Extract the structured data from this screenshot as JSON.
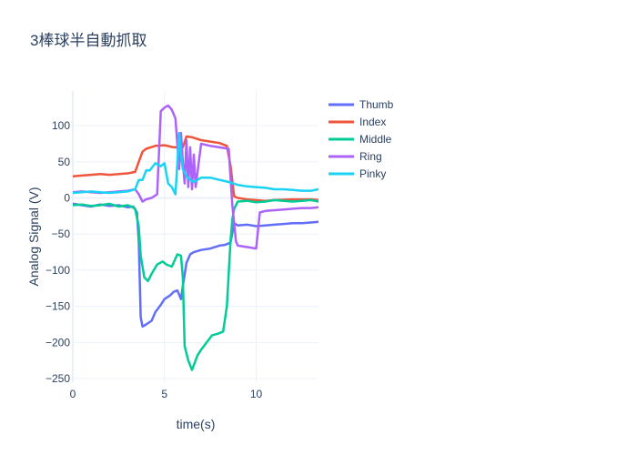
{
  "chart_data": {
    "type": "line",
    "title": "3棒球半自動抓取",
    "xlabel": "time(s)",
    "ylabel": "Analog Signal (V)",
    "xlim": [
      0,
      13.4
    ],
    "ylim": [
      -255,
      148
    ],
    "xticks": [
      0,
      5,
      10
    ],
    "yticks": [
      -250,
      -200,
      -150,
      -100,
      -50,
      0,
      50,
      100
    ],
    "ytick_labels": [
      "−250",
      "−200",
      "−150",
      "−100",
      "−50",
      "0",
      "50",
      "100"
    ],
    "grid": true,
    "legend_position": "right",
    "series": [
      {
        "name": "Thumb",
        "color": "#636efa",
        "x": [
          0,
          0.5,
          1,
          1.5,
          2,
          2.5,
          3,
          3.3,
          3.5,
          3.6,
          3.7,
          3.8,
          4,
          4.3,
          4.5,
          4.8,
          5,
          5.3,
          5.5,
          5.7,
          5.9,
          6,
          6.2,
          6.4,
          6.6,
          7,
          7.5,
          8,
          8.3,
          8.6,
          8.8,
          9,
          9.5,
          10,
          10.5,
          11,
          11.5,
          12,
          12.5,
          13,
          13.4
        ],
        "y": [
          -8,
          -10,
          -12,
          -9,
          -11,
          -10,
          -13,
          -12,
          -20,
          -60,
          -165,
          -178,
          -175,
          -170,
          -158,
          -148,
          -140,
          -135,
          -130,
          -128,
          -140,
          -122,
          -90,
          -78,
          -75,
          -72,
          -70,
          -66,
          -65,
          -62,
          -35,
          -38,
          -37,
          -39,
          -38,
          -37,
          -36,
          -35,
          -35,
          -34,
          -33
        ]
      },
      {
        "name": "Index",
        "color": "#ef553b",
        "x": [
          0,
          0.5,
          1,
          1.5,
          2,
          2.5,
          3,
          3.4,
          3.6,
          3.8,
          4,
          4.5,
          5,
          5.5,
          6,
          6.2,
          6.5,
          7,
          7.5,
          8,
          8.4,
          8.6,
          8.8,
          9,
          9.5,
          10,
          10.5,
          11,
          12,
          13,
          13.4
        ],
        "y": [
          30,
          31,
          32,
          33,
          32,
          33,
          34,
          36,
          50,
          64,
          68,
          72,
          73,
          70,
          70,
          85,
          84,
          80,
          78,
          76,
          72,
          45,
          2,
          0,
          -2,
          -3,
          -4,
          -3,
          -2,
          -2,
          -3
        ]
      },
      {
        "name": "Middle",
        "color": "#00cc96",
        "x": [
          0,
          0.5,
          1,
          1.5,
          2,
          2.5,
          3,
          3.2,
          3.4,
          3.6,
          3.7,
          3.9,
          4.1,
          4.3,
          4.6,
          4.9,
          5.1,
          5.4,
          5.7,
          5.9,
          6,
          6.1,
          6.3,
          6.5,
          6.8,
          7,
          7.3,
          7.6,
          7.9,
          8.2,
          8.4,
          8.6,
          8.7,
          8.8,
          9,
          9.5,
          10,
          10.5,
          11,
          11.5,
          12,
          12.5,
          13,
          13.4
        ],
        "y": [
          -10,
          -9,
          -11,
          -10,
          -8,
          -12,
          -10,
          -12,
          -15,
          -40,
          -80,
          -110,
          -115,
          -105,
          -92,
          -88,
          -92,
          -95,
          -78,
          -80,
          -110,
          -205,
          -225,
          -238,
          -218,
          -210,
          -200,
          -190,
          -188,
          -185,
          -150,
          -60,
          -30,
          -15,
          -5,
          -4,
          -6,
          -5,
          -3,
          -4,
          -5,
          -4,
          -3,
          -5
        ]
      },
      {
        "name": "Ring",
        "color": "#ab63fa",
        "x": [
          0,
          0.5,
          1,
          1.5,
          2,
          2.5,
          3,
          3.4,
          3.6,
          3.8,
          4,
          4.3,
          4.6,
          4.8,
          5,
          5.2,
          5.4,
          5.6,
          5.8,
          5.9,
          6,
          6.1,
          6.2,
          6.3,
          6.4,
          6.5,
          6.6,
          6.7,
          7,
          7.5,
          8,
          8.5,
          8.7,
          8.9,
          9,
          9.5,
          10,
          10.2,
          10.5,
          11,
          11.5,
          12,
          12.5,
          13,
          13.4
        ],
        "y": [
          8,
          9,
          8,
          7,
          8,
          9,
          10,
          12,
          5,
          -5,
          -2,
          0,
          5,
          120,
          125,
          128,
          122,
          110,
          40,
          90,
          50,
          20,
          80,
          15,
          70,
          12,
          60,
          15,
          75,
          72,
          70,
          68,
          -10,
          -60,
          -66,
          -68,
          -70,
          -20,
          -18,
          -17,
          -16,
          -15,
          -14,
          -14,
          -13
        ]
      },
      {
        "name": "Pinky",
        "color": "#19d3f3",
        "x": [
          0,
          0.5,
          1,
          1.5,
          2,
          2.5,
          3,
          3.4,
          3.6,
          3.8,
          4,
          4.2,
          4.5,
          4.8,
          5,
          5.2,
          5.4,
          5.6,
          5.8,
          5.9,
          6,
          6.2,
          6.4,
          6.6,
          7,
          7.5,
          8,
          8.5,
          9,
          9.5,
          10,
          10.5,
          11,
          11.5,
          12,
          12.5,
          13,
          13.4
        ],
        "y": [
          7,
          8,
          9,
          8,
          7,
          8,
          9,
          12,
          25,
          25,
          38,
          38,
          48,
          44,
          48,
          20,
          15,
          5,
          90,
          60,
          40,
          30,
          25,
          22,
          28,
          28,
          25,
          22,
          18,
          16,
          15,
          14,
          12,
          12,
          11,
          10,
          10,
          12
        ]
      }
    ]
  }
}
